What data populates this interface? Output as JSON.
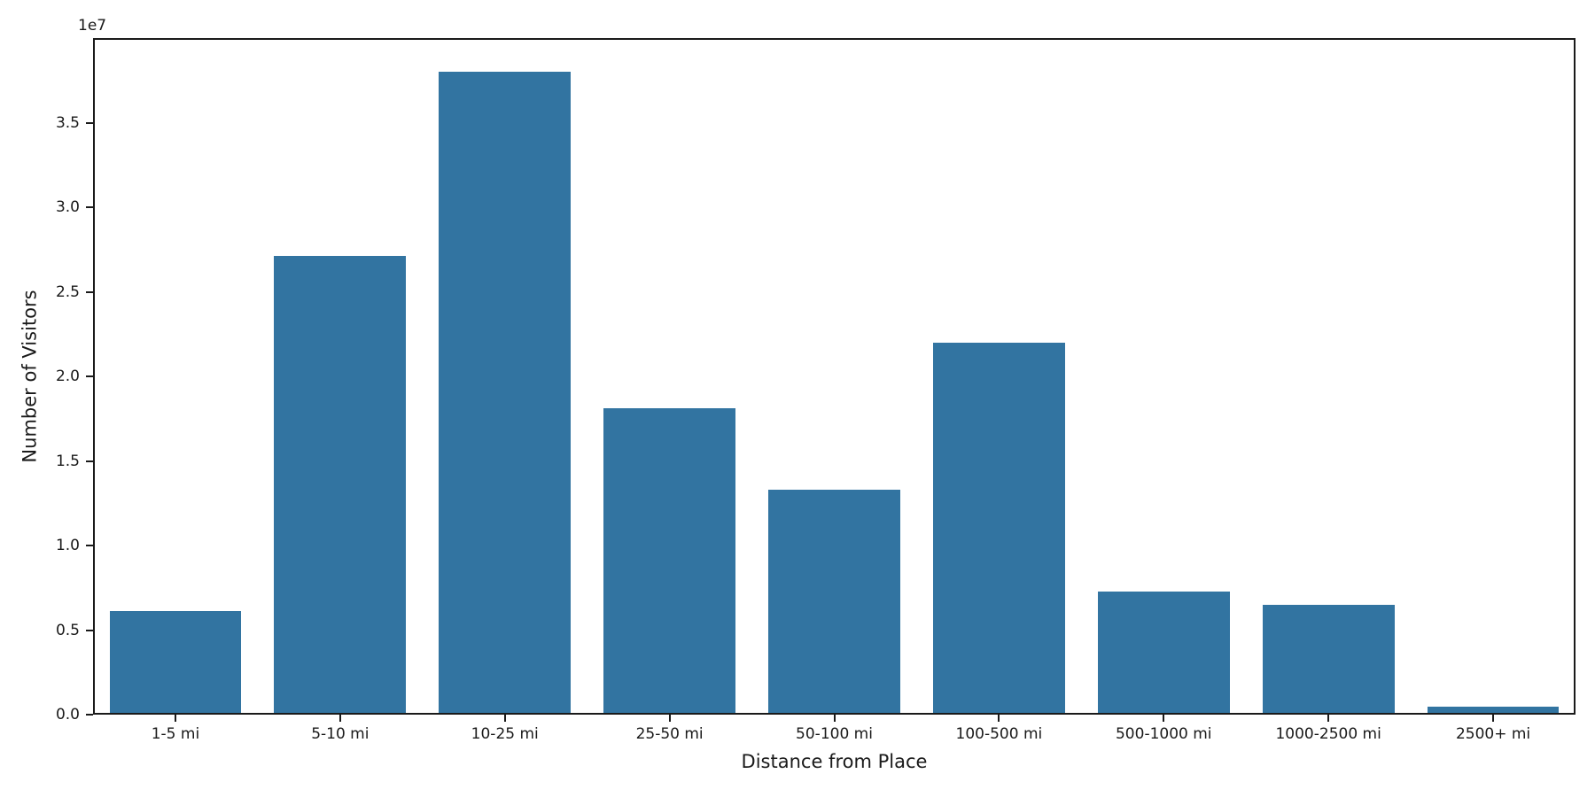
{
  "chart_data": {
    "type": "bar",
    "title": "",
    "xlabel": "Distance from Place",
    "ylabel": "Number of Visitors",
    "offset_text": "1e7",
    "categories": [
      "1-5 mi",
      "5-10 mi",
      "10-25 mi",
      "25-50 mi",
      "50-100 mi",
      "100-500 mi",
      "500-1000 mi",
      "1000-2500 mi",
      "2500+ mi"
    ],
    "values": [
      6100000,
      27100000,
      38000000,
      18100000,
      13300000,
      22000000,
      7300000,
      6500000,
      450000
    ],
    "ylim": [
      0,
      40000000
    ],
    "y_ticks": [
      0,
      5000000,
      10000000,
      15000000,
      20000000,
      25000000,
      30000000,
      35000000
    ],
    "y_tick_labels": [
      "0.0",
      "0.5",
      "1.0",
      "1.5",
      "2.0",
      "2.5",
      "3.0",
      "3.5"
    ],
    "bar_color": "#3274a1",
    "axis_color": "#1a1a1a",
    "grid": false,
    "legend_position": "none",
    "bar_width_fraction": 0.8
  }
}
